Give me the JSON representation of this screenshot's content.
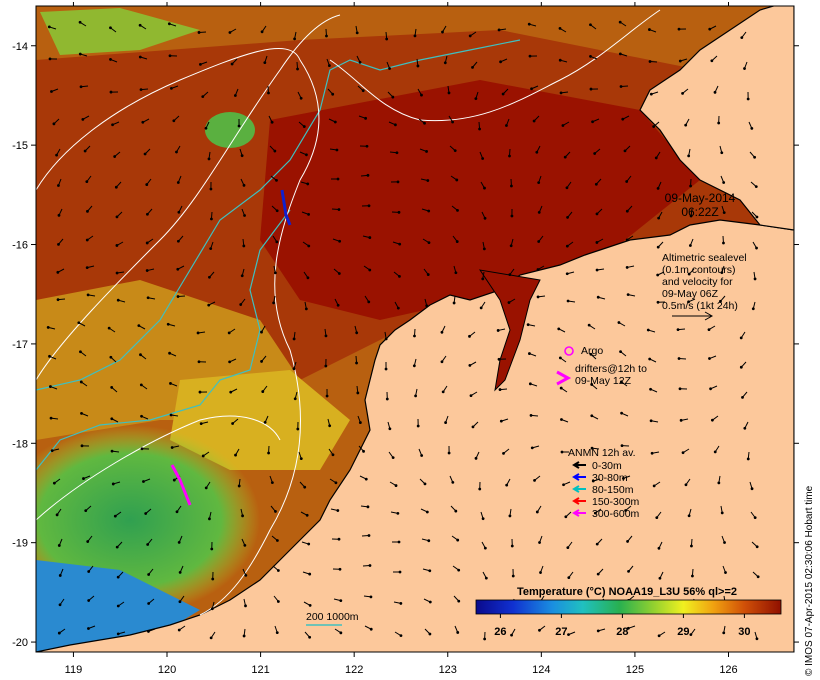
{
  "map": {
    "lon_ticks": [
      "119",
      "120",
      "121",
      "122",
      "123",
      "124",
      "125",
      "126"
    ],
    "lat_ticks": [
      "-14",
      "-15",
      "-16",
      "-17",
      "-18",
      "-19",
      "-20"
    ],
    "lon_range": [
      118.6,
      126.7
    ],
    "lat_range": [
      -20.1,
      -13.6
    ],
    "colors": {
      "land": "#fcc89b",
      "coastline": "#000000",
      "sea_warm": "#a01000",
      "sea_cool": "#3a9a4a",
      "contour": "#ffffff",
      "isobath": "#3fc0c0"
    }
  },
  "annotations": {
    "date": "09-May-2014",
    "time": "06:22Z",
    "altimetry_lines": [
      "Altimetric sealevel",
      "(0.1m contours)",
      "and velocity for",
      "09-May 06Z",
      "0.5m/s (1kt 24h)"
    ],
    "argo_label": "Argo",
    "drifters_lines": [
      "drifters@12h to",
      "09-May 12Z"
    ],
    "anmn_title": "ANMN 12h av.",
    "anmn_items": [
      {
        "label": "0-30m",
        "color": "#000000"
      },
      {
        "label": "30-80m",
        "color": "#0000ff"
      },
      {
        "label": "80-150m",
        "color": "#00c0c0"
      },
      {
        "label": "150-300m",
        "color": "#ff0000"
      },
      {
        "label": "300-600m",
        "color": "#ff00ff"
      }
    ],
    "isobath_label": "200  1000m"
  },
  "colorbar": {
    "title": "Temperature (°C) NOAA19_L3U 56% ql>=2",
    "ticks": [
      "26",
      "27",
      "28",
      "29",
      "30"
    ],
    "tick_values": [
      26,
      27,
      28,
      29,
      30
    ],
    "range": [
      25.6,
      30.6
    ]
  },
  "credit": "© IMOS 07-Apr-2015 02:30:06 Hobart time"
}
